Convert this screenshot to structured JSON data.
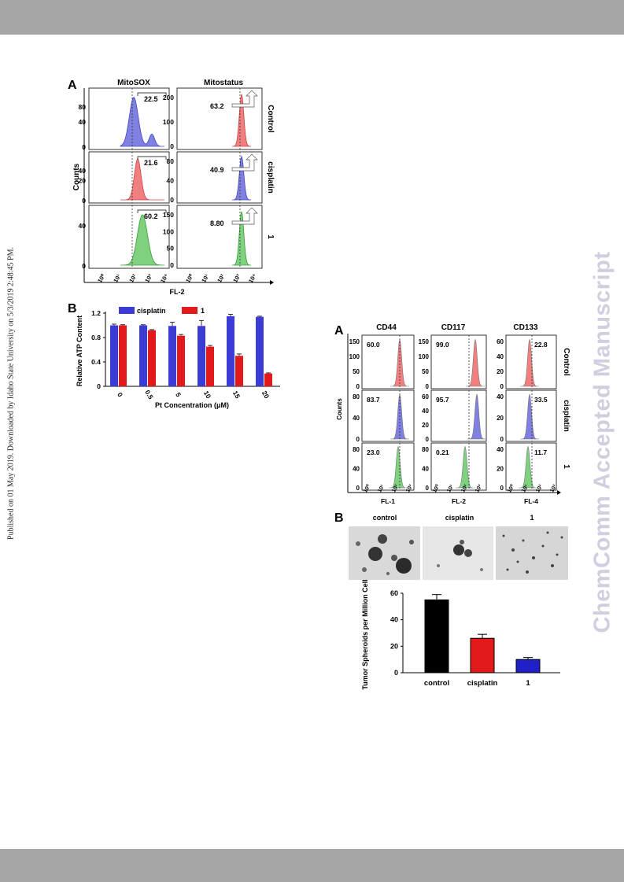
{
  "published_note": "Published on 01 May 2019. Downloaded by Idaho State University on 5/3/2019 2:48:45 PM.",
  "watermark": "ChemComm Accepted Manuscript",
  "colors": {
    "blue": "#3b3bd6",
    "red": "#e31a1c",
    "red_fill": "#f08080",
    "blue_fill": "#8080e0",
    "green_fill": "#7fd17f",
    "black": "#000000",
    "header_gray": "#a6a6a6",
    "watermark": "#cfcfe0"
  },
  "fig1": {
    "panel_a": {
      "letter": "A",
      "col_titles": [
        "MitoSOX",
        "Mitostatus"
      ],
      "row_labels": [
        "Control",
        "cisplatin",
        "1"
      ],
      "y_axis_title": "Counts",
      "x_axis_title": "FL-2",
      "x_ticks": [
        "10⁰",
        "10¹",
        "10²",
        "10³",
        "10⁴"
      ],
      "mitosox_values": [
        "22.5",
        "21.6",
        "60.2"
      ],
      "mitostatus_values": [
        "63.2",
        "40.9",
        "8.80"
      ],
      "mitosox_yticks": [
        [
          "80",
          "40",
          "0"
        ],
        [
          "40",
          "20",
          "0"
        ],
        [
          "40",
          "0"
        ]
      ],
      "mitostatus_yticks": [
        [
          "200",
          "100",
          "0"
        ],
        [
          "80",
          "40",
          "0"
        ],
        [
          "150",
          "100",
          "50",
          "0"
        ]
      ]
    },
    "panel_b": {
      "letter": "B",
      "chart_data": {
        "type": "bar",
        "categories": [
          "0",
          "0.5",
          "5",
          "10",
          "15",
          "20"
        ],
        "series": [
          {
            "name": "cisplatin",
            "values": [
              1.0,
              1.0,
              0.99,
              0.99,
              1.15,
              1.14
            ]
          },
          {
            "name": "1",
            "values": [
              1.0,
              0.92,
              0.83,
              0.65,
              0.5,
              0.21
            ]
          }
        ],
        "errors": [
          [
            0.02,
            0.01,
            0.06,
            0.09,
            0.03,
            0.01
          ],
          [
            0.01,
            0.01,
            0.02,
            0.02,
            0.03,
            0.01
          ]
        ],
        "xlabel": "Pt Concentration (μM)",
        "ylabel": "Relative ATP Content",
        "ylim": [
          0,
          1.2
        ],
        "yticks": [
          "0",
          "0.4",
          "0.8",
          "1.2"
        ],
        "legend_position": "top"
      }
    }
  },
  "fig2": {
    "panel_a": {
      "letter": "A",
      "col_titles": [
        "CD44",
        "CD117",
        "CD133"
      ],
      "row_labels": [
        "Control",
        "cisplatin",
        "1"
      ],
      "y_axis_title": "Counts",
      "x_axis_titles": [
        "FL-1",
        "FL-2",
        "FL-4"
      ],
      "x_ticks": [
        "10⁰",
        "10¹",
        "10²",
        "10³"
      ],
      "values": [
        [
          "60.0",
          "99.0",
          "22.8"
        ],
        [
          "83.7",
          "95.7",
          "33.5"
        ],
        [
          "23.0",
          "0.21",
          "11.7"
        ]
      ],
      "yticks": [
        [
          [
            "150",
            "100",
            "50",
            "0"
          ],
          [
            "150",
            "100",
            "50",
            "0"
          ],
          [
            "60",
            "40",
            "20",
            "0"
          ]
        ],
        [
          [
            "80",
            "40",
            "0"
          ],
          [
            "60",
            "40",
            "20",
            "0"
          ],
          [
            "40",
            "20",
            "0"
          ]
        ],
        [
          [
            "80",
            "40",
            "0"
          ],
          [
            "80",
            "40",
            "0"
          ],
          [
            "40",
            "20",
            "0"
          ]
        ]
      ]
    },
    "panel_b": {
      "letter": "B",
      "image_labels": [
        "control",
        "cisplatin",
        "1"
      ],
      "chart_data": {
        "type": "bar",
        "categories": [
          "control",
          "cisplatin",
          "1"
        ],
        "values": [
          55,
          26,
          10
        ],
        "errors": [
          4,
          3,
          1.5
        ],
        "ylabel": "Tumor Spheroids per Million Cells",
        "ylim": [
          0,
          60
        ],
        "yticks": [
          "0",
          "20",
          "40",
          "60"
        ],
        "colors": [
          "#000000",
          "#e31a1c",
          "#2020c8"
        ]
      }
    }
  }
}
